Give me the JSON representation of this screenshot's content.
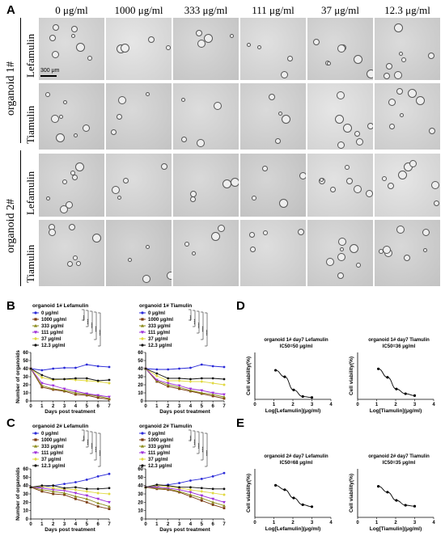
{
  "panels": {
    "A": "A",
    "B": "B",
    "C": "C",
    "D": "D",
    "E": "E"
  },
  "microscopy": {
    "concentrations": [
      "0 μg/ml",
      "1000 μg/ml",
      "333 μg/ml",
      "111 μg/ml",
      "37 μg/ml",
      "12.3 μg/ml"
    ],
    "organoids": [
      "organoid 1#",
      "organoid 2#"
    ],
    "drugs": [
      "Lefamulin",
      "Tiamulin"
    ],
    "scale_bar": "300 μm"
  },
  "chart_data": [
    {
      "type": "line",
      "panel": "B",
      "title": "organoid 1#  Lefamulin",
      "xlabel": "Days post treatment",
      "ylabel": "Number of organoids",
      "xlim": [
        0,
        7
      ],
      "ylim": [
        0,
        60
      ],
      "xticks": [
        0,
        1,
        2,
        3,
        4,
        5,
        6,
        7
      ],
      "yticks": [
        0,
        10,
        20,
        30,
        40,
        50,
        60
      ],
      "x": [
        0,
        1,
        2,
        3,
        4,
        5,
        6,
        7
      ],
      "series": [
        {
          "name": "0 μg/ml",
          "color": "#2a2ad8",
          "values": [
            40,
            38,
            40,
            41,
            41,
            45,
            43,
            42
          ]
        },
        {
          "name": "1000 μg/ml",
          "color": "#7a3b10",
          "values": [
            40,
            17,
            14,
            12,
            8,
            7,
            4,
            2
          ]
        },
        {
          "name": "333 μg/ml",
          "color": "#8a8a18",
          "values": [
            40,
            19,
            15,
            13,
            10,
            8,
            6,
            3
          ]
        },
        {
          "name": "111 μg/ml",
          "color": "#9b2ad8",
          "values": [
            40,
            22,
            19,
            15,
            12,
            9,
            7,
            5
          ]
        },
        {
          "name": "37 μg/ml",
          "color": "#e0d840",
          "values": [
            40,
            29,
            26,
            27,
            26,
            25,
            24,
            22
          ]
        },
        {
          "name": "12.3 μg/ml",
          "color": "#111111",
          "values": [
            40,
            32,
            27,
            27,
            28,
            28,
            25,
            26
          ]
        }
      ],
      "significance": [
        "****",
        "****",
        "****",
        "****",
        "****"
      ]
    },
    {
      "type": "line",
      "panel": "B",
      "title": "organoid 1#  Tiamulin",
      "xlabel": "Days post treatment",
      "ylabel": "",
      "xlim": [
        0,
        7
      ],
      "ylim": [
        0,
        60
      ],
      "xticks": [
        0,
        1,
        2,
        3,
        4,
        5,
        6,
        7
      ],
      "yticks": [
        0,
        10,
        20,
        30,
        40,
        50,
        60
      ],
      "x": [
        0,
        1,
        2,
        3,
        4,
        5,
        6,
        7
      ],
      "series": [
        {
          "name": "0 μg/ml",
          "color": "#2a2ad8",
          "values": [
            40,
            39,
            39,
            40,
            41,
            45,
            43,
            42
          ]
        },
        {
          "name": "1000 μg/ml",
          "color": "#7a3b10",
          "values": [
            40,
            24,
            18,
            15,
            12,
            9,
            6,
            3
          ]
        },
        {
          "name": "333 μg/ml",
          "color": "#8a8a18",
          "values": [
            40,
            25,
            20,
            17,
            13,
            10,
            8,
            5
          ]
        },
        {
          "name": "111 μg/ml",
          "color": "#9b2ad8",
          "values": [
            40,
            26,
            22,
            19,
            15,
            13,
            10,
            8
          ]
        },
        {
          "name": "37 μg/ml",
          "color": "#e0d840",
          "values": [
            40,
            31,
            25,
            25,
            24,
            24,
            22,
            20
          ]
        },
        {
          "name": "12.3 μg/ml",
          "color": "#111111",
          "values": [
            40,
            34,
            28,
            28,
            27,
            28,
            28,
            27
          ]
        }
      ],
      "significance": [
        "****",
        "****",
        "****",
        "****",
        "****"
      ]
    },
    {
      "type": "line",
      "panel": "C",
      "title": "organoid 2#  Lefamulin",
      "xlabel": "Days post treatment",
      "ylabel": "Number of organoids",
      "xlim": [
        0,
        7
      ],
      "ylim": [
        0,
        60
      ],
      "xticks": [
        0,
        1,
        2,
        3,
        4,
        5,
        6,
        7
      ],
      "yticks": [
        0,
        10,
        20,
        30,
        40,
        50,
        60
      ],
      "x": [
        0,
        1,
        2,
        3,
        4,
        5,
        6,
        7
      ],
      "series": [
        {
          "name": "0 μg/ml",
          "color": "#2a2ad8",
          "values": [
            38,
            38,
            40,
            42,
            44,
            47,
            51,
            54
          ]
        },
        {
          "name": "1000 μg/ml",
          "color": "#7a3b10",
          "values": [
            38,
            33,
            30,
            29,
            24,
            20,
            15,
            12
          ]
        },
        {
          "name": "333 μg/ml",
          "color": "#8a8a18",
          "values": [
            38,
            35,
            33,
            31,
            27,
            24,
            19,
            15
          ]
        },
        {
          "name": "111 μg/ml",
          "color": "#9b2ad8",
          "values": [
            38,
            37,
            35,
            34,
            31,
            28,
            24,
            20
          ]
        },
        {
          "name": "37 μg/ml",
          "color": "#e0d840",
          "values": [
            38,
            39,
            37,
            36,
            35,
            33,
            31,
            30
          ]
        },
        {
          "name": "12.3 μg/ml",
          "color": "#111111",
          "values": [
            38,
            40,
            40,
            37,
            38,
            36,
            36,
            37
          ]
        }
      ],
      "significance": [
        "****",
        "****",
        "****",
        "****",
        "****"
      ]
    },
    {
      "type": "line",
      "panel": "C",
      "title": "organoid 2#  Tiamulin",
      "xlabel": "Days post treatment",
      "ylabel": "",
      "xlim": [
        0,
        7
      ],
      "ylim": [
        0,
        60
      ],
      "xticks": [
        0,
        1,
        2,
        3,
        4,
        5,
        6,
        7
      ],
      "yticks": [
        0,
        10,
        20,
        30,
        40,
        50,
        60
      ],
      "x": [
        0,
        1,
        2,
        3,
        4,
        5,
        6,
        7
      ],
      "series": [
        {
          "name": "0 μg/ml",
          "color": "#2a2ad8",
          "values": [
            38,
            39,
            41,
            43,
            46,
            48,
            51,
            55
          ]
        },
        {
          "name": "1000 μg/ml",
          "color": "#7a3b10",
          "values": [
            38,
            36,
            35,
            32,
            27,
            22,
            17,
            13
          ]
        },
        {
          "name": "333 μg/ml",
          "color": "#8a8a18",
          "values": [
            38,
            37,
            36,
            33,
            29,
            25,
            20,
            16
          ]
        },
        {
          "name": "111 μg/ml",
          "color": "#9b2ad8",
          "values": [
            38,
            38,
            37,
            35,
            32,
            28,
            24,
            20
          ]
        },
        {
          "name": "37 μg/ml",
          "color": "#e0d840",
          "values": [
            38,
            40,
            39,
            37,
            35,
            33,
            31,
            29
          ]
        },
        {
          "name": "12.3 μg/ml",
          "color": "#111111",
          "values": [
            38,
            41,
            40,
            38,
            38,
            37,
            36,
            36
          ]
        }
      ],
      "significance": [
        "****",
        "****",
        "****",
        "****",
        "****"
      ]
    },
    {
      "type": "scatter",
      "panel": "D",
      "title": "organoid 1#  day7  Lefamulin",
      "subtitle": "IC50=50 μg/ml",
      "xlabel": "Log[Lefamulin](μg/ml)",
      "ylabel": "Cell viability(%)",
      "xlim": [
        0,
        4
      ],
      "ylim": [
        0,
        100
      ],
      "xticks": [
        0,
        1,
        2,
        3,
        4
      ],
      "x": [
        1.09,
        1.57,
        2.04,
        2.52,
        3.0
      ],
      "values": [
        62,
        48,
        20,
        6,
        4
      ]
    },
    {
      "type": "scatter",
      "panel": "D",
      "title": "organoid 1#  day7  Tiamulin",
      "subtitle": "IC50=36 μg/ml",
      "xlabel": "Log[Tiamulin](μg/ml)",
      "ylabel": "Cell viability(%)",
      "xlim": [
        0,
        4
      ],
      "ylim": [
        0,
        100
      ],
      "xticks": [
        0,
        1,
        2,
        3,
        4
      ],
      "x": [
        1.09,
        1.57,
        2.04,
        2.52,
        3.0
      ],
      "values": [
        65,
        47,
        22,
        12,
        8
      ]
    },
    {
      "type": "scatter",
      "panel": "E",
      "title": "organoid 2#  day7  Lefamulin",
      "subtitle": "IC50=68 μg/ml",
      "xlabel": "Log[Lefamulin](μg/ml)",
      "ylabel": "Cell viability(%)",
      "xlim": [
        0,
        4
      ],
      "ylim": [
        0,
        100
      ],
      "xticks": [
        0,
        1,
        2,
        3,
        4
      ],
      "x": [
        1.09,
        1.57,
        2.04,
        2.52,
        3.0
      ],
      "values": [
        66,
        57,
        40,
        26,
        22
      ]
    },
    {
      "type": "scatter",
      "panel": "E",
      "title": "organoid 2#  day7  Tiamulin",
      "subtitle": "IC50=35 μg/ml",
      "xlabel": "Log[Tiamulin](μg/ml)",
      "ylabel": "Cell viability(%)",
      "xlim": [
        0,
        4
      ],
      "ylim": [
        0,
        100
      ],
      "xticks": [
        0,
        1,
        2,
        3,
        4
      ],
      "x": [
        1.09,
        1.57,
        2.04,
        2.52,
        3.0
      ],
      "values": [
        64,
        52,
        35,
        25,
        23
      ]
    }
  ]
}
